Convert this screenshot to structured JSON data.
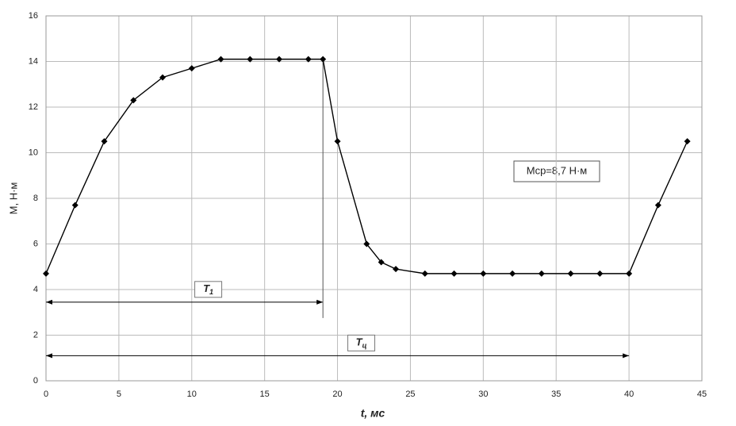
{
  "chart_data": {
    "type": "line",
    "x_label": "t, мс",
    "y_label": "M, Н·м",
    "annotation": "Mср=8,7 Н·м",
    "x": [
      0,
      2,
      4,
      6,
      8,
      10,
      12,
      14,
      16,
      18,
      19,
      20,
      22,
      23,
      24,
      26,
      28,
      30,
      32,
      34,
      36,
      38,
      40,
      42,
      44
    ],
    "series": [
      {
        "color": "#000000",
        "values": [
          4.7,
          7.7,
          10.5,
          12.3,
          13.3,
          13.7,
          14.1,
          14.1,
          14.1,
          14.1,
          14.1,
          10.5,
          6.0,
          5.2,
          4.9,
          4.7,
          4.7,
          4.7,
          4.7,
          4.7,
          4.7,
          4.7,
          4.7,
          7.7,
          10.5
        ]
      }
    ],
    "spans": [
      {
        "label": "T",
        "sub": "1",
        "from": 0,
        "to": 19,
        "y": 3.45
      },
      {
        "label": "T",
        "sub": "ц",
        "from": 0,
        "to": 40,
        "y": 1.1
      }
    ],
    "xlim": [
      0,
      45
    ],
    "xticks": [
      0,
      5,
      10,
      15,
      20,
      25,
      30,
      35,
      40,
      45
    ],
    "ylim": [
      0,
      16
    ],
    "yticks": [
      0,
      2,
      4,
      6,
      8,
      10,
      12,
      14,
      16
    ],
    "grid": true
  }
}
